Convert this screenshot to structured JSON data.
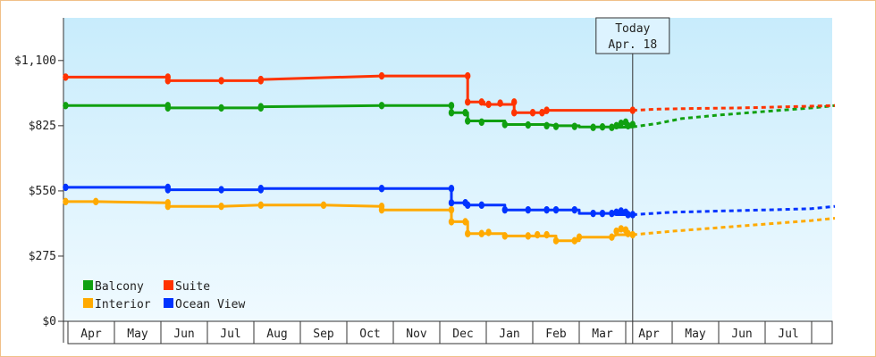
{
  "chart_data": {
    "type": "line",
    "y_ticks": [
      {
        "value": 0,
        "label": "$0"
      },
      {
        "value": 275,
        "label": "$275"
      },
      {
        "value": 550,
        "label": "$550"
      },
      {
        "value": 825,
        "label": "$825"
      },
      {
        "value": 1100,
        "label": "$1,100"
      }
    ],
    "ylim": [
      0,
      1280
    ],
    "x_months": [
      "Apr",
      "May",
      "Jun",
      "Jul",
      "Aug",
      "Sep",
      "Oct",
      "Nov",
      "Dec",
      "Jan",
      "Feb",
      "Mar",
      "Apr",
      "May",
      "Jun",
      "Jul"
    ],
    "x_range_months": [
      0,
      16.5
    ],
    "today_callout": {
      "line1": "Today",
      "line2": "Apr. 18",
      "month_index": 12.15
    },
    "legend": [
      {
        "name": "Balcony",
        "color": "#10a010"
      },
      {
        "name": "Suite",
        "color": "#ff3300"
      },
      {
        "name": "Interior",
        "color": "#ffaa00"
      },
      {
        "name": "Ocean View",
        "color": "#0033ff"
      }
    ],
    "series": [
      {
        "name": "Balcony",
        "color": "#10a010",
        "points": [
          [
            -0.05,
            910
          ],
          [
            2.15,
            910
          ],
          [
            2.15,
            900
          ],
          [
            3.3,
            900
          ],
          [
            4.15,
            900
          ],
          [
            4.15,
            905
          ],
          [
            6.75,
            910
          ],
          [
            8.25,
            910
          ],
          [
            8.25,
            880
          ],
          [
            8.6,
            880
          ],
          [
            8.6,
            845
          ],
          [
            9.4,
            845
          ],
          [
            9.4,
            830
          ],
          [
            10.3,
            830
          ],
          [
            10.5,
            825
          ],
          [
            11.0,
            825
          ],
          [
            11.0,
            820
          ],
          [
            11.7,
            820
          ],
          [
            11.8,
            818
          ],
          [
            12.15,
            820
          ],
          [
            12.05,
            830
          ],
          [
            12.15,
            830
          ]
        ],
        "markers": [
          [
            -0.05,
            910
          ],
          [
            2.15,
            910
          ],
          [
            2.15,
            900
          ],
          [
            3.3,
            900
          ],
          [
            4.15,
            900
          ],
          [
            4.15,
            905
          ],
          [
            6.75,
            910
          ],
          [
            8.25,
            910
          ],
          [
            8.25,
            880
          ],
          [
            8.55,
            880
          ],
          [
            8.6,
            845
          ],
          [
            8.9,
            840
          ],
          [
            9.4,
            830
          ],
          [
            9.9,
            828
          ],
          [
            10.3,
            825
          ],
          [
            10.5,
            822
          ],
          [
            10.9,
            822
          ],
          [
            11.3,
            818
          ],
          [
            11.5,
            820
          ],
          [
            11.7,
            818
          ],
          [
            11.8,
            825
          ],
          [
            11.9,
            835
          ],
          [
            12.0,
            840
          ],
          [
            12.05,
            825
          ],
          [
            12.15,
            830
          ]
        ],
        "forecast": [
          [
            12.15,
            820
          ],
          [
            12.7,
            835
          ],
          [
            13.2,
            855
          ],
          [
            14.0,
            870
          ],
          [
            15.0,
            885
          ],
          [
            16.0,
            900
          ],
          [
            16.5,
            910
          ]
        ]
      },
      {
        "name": "Suite",
        "color": "#ff3300",
        "points": [
          [
            -0.05,
            1030
          ],
          [
            2.15,
            1030
          ],
          [
            2.15,
            1015
          ],
          [
            3.3,
            1015
          ],
          [
            4.15,
            1015
          ],
          [
            4.15,
            1020
          ],
          [
            6.75,
            1035
          ],
          [
            8.6,
            1035
          ],
          [
            8.6,
            925
          ],
          [
            8.95,
            925
          ],
          [
            8.95,
            915
          ],
          [
            9.6,
            915
          ],
          [
            9.6,
            880
          ],
          [
            10.3,
            880
          ],
          [
            10.3,
            890
          ],
          [
            12.15,
            890
          ]
        ],
        "markers": [
          [
            -0.05,
            1030
          ],
          [
            2.15,
            1030
          ],
          [
            2.15,
            1015
          ],
          [
            3.3,
            1015
          ],
          [
            4.15,
            1015
          ],
          [
            4.15,
            1020
          ],
          [
            6.75,
            1035
          ],
          [
            8.6,
            1035
          ],
          [
            8.6,
            925
          ],
          [
            8.9,
            925
          ],
          [
            9.05,
            915
          ],
          [
            9.3,
            920
          ],
          [
            9.6,
            925
          ],
          [
            9.6,
            880
          ],
          [
            10.0,
            880
          ],
          [
            10.2,
            880
          ],
          [
            10.3,
            890
          ],
          [
            12.15,
            890
          ]
        ],
        "forecast": [
          [
            12.15,
            890
          ],
          [
            12.7,
            895
          ],
          [
            13.5,
            898
          ],
          [
            14.5,
            900
          ],
          [
            15.5,
            905
          ],
          [
            16.5,
            910
          ]
        ]
      },
      {
        "name": "Ocean View",
        "color": "#0033ff",
        "points": [
          [
            -0.05,
            565
          ],
          [
            2.15,
            565
          ],
          [
            2.15,
            555
          ],
          [
            3.3,
            555
          ],
          [
            4.15,
            555
          ],
          [
            4.15,
            560
          ],
          [
            6.75,
            560
          ],
          [
            8.25,
            560
          ],
          [
            8.25,
            500
          ],
          [
            8.6,
            500
          ],
          [
            8.6,
            490
          ],
          [
            9.4,
            490
          ],
          [
            9.4,
            470
          ],
          [
            10.3,
            470
          ],
          [
            10.5,
            470
          ],
          [
            11.0,
            470
          ],
          [
            11.0,
            455
          ],
          [
            11.7,
            455
          ],
          [
            11.8,
            450
          ],
          [
            12.15,
            450
          ]
        ],
        "markers": [
          [
            -0.05,
            565
          ],
          [
            2.15,
            565
          ],
          [
            2.15,
            555
          ],
          [
            3.3,
            555
          ],
          [
            4.15,
            555
          ],
          [
            4.15,
            560
          ],
          [
            6.75,
            560
          ],
          [
            8.25,
            560
          ],
          [
            8.25,
            500
          ],
          [
            8.55,
            500
          ],
          [
            8.6,
            490
          ],
          [
            8.9,
            490
          ],
          [
            9.4,
            470
          ],
          [
            9.9,
            470
          ],
          [
            10.3,
            470
          ],
          [
            10.5,
            470
          ],
          [
            10.9,
            470
          ],
          [
            11.3,
            455
          ],
          [
            11.5,
            455
          ],
          [
            11.7,
            455
          ],
          [
            11.8,
            460
          ],
          [
            11.9,
            465
          ],
          [
            12.0,
            460
          ],
          [
            12.05,
            450
          ],
          [
            12.15,
            450
          ]
        ],
        "forecast": [
          [
            12.15,
            450
          ],
          [
            13.0,
            460
          ],
          [
            14.0,
            465
          ],
          [
            15.0,
            470
          ],
          [
            16.0,
            475
          ],
          [
            16.5,
            485
          ]
        ]
      },
      {
        "name": "Interior",
        "color": "#ffaa00",
        "points": [
          [
            -0.05,
            505
          ],
          [
            0.6,
            505
          ],
          [
            2.15,
            500
          ],
          [
            2.15,
            485
          ],
          [
            3.3,
            485
          ],
          [
            4.15,
            490
          ],
          [
            5.5,
            490
          ],
          [
            6.75,
            485
          ],
          [
            6.75,
            470
          ],
          [
            8.25,
            470
          ],
          [
            8.25,
            420
          ],
          [
            8.6,
            420
          ],
          [
            8.6,
            370
          ],
          [
            9.4,
            370
          ],
          [
            9.4,
            360
          ],
          [
            10.3,
            360
          ],
          [
            10.5,
            360
          ],
          [
            10.5,
            340
          ],
          [
            11.0,
            340
          ],
          [
            11.0,
            355
          ],
          [
            11.7,
            355
          ],
          [
            11.8,
            365
          ],
          [
            12.15,
            365
          ]
        ],
        "markers": [
          [
            -0.05,
            505
          ],
          [
            0.6,
            505
          ],
          [
            2.15,
            500
          ],
          [
            2.15,
            485
          ],
          [
            3.3,
            485
          ],
          [
            4.15,
            490
          ],
          [
            5.5,
            490
          ],
          [
            6.75,
            485
          ],
          [
            6.75,
            470
          ],
          [
            8.25,
            470
          ],
          [
            8.25,
            420
          ],
          [
            8.55,
            420
          ],
          [
            8.6,
            370
          ],
          [
            8.9,
            370
          ],
          [
            9.05,
            375
          ],
          [
            9.4,
            360
          ],
          [
            9.9,
            360
          ],
          [
            10.1,
            365
          ],
          [
            10.3,
            365
          ],
          [
            10.5,
            340
          ],
          [
            10.9,
            340
          ],
          [
            11.0,
            355
          ],
          [
            11.7,
            355
          ],
          [
            11.8,
            380
          ],
          [
            11.9,
            390
          ],
          [
            12.0,
            385
          ],
          [
            12.05,
            370
          ],
          [
            12.15,
            365
          ]
        ],
        "forecast": [
          [
            12.15,
            365
          ],
          [
            13.0,
            380
          ],
          [
            14.0,
            395
          ],
          [
            15.0,
            410
          ],
          [
            16.0,
            425
          ],
          [
            16.5,
            435
          ]
        ]
      }
    ]
  }
}
